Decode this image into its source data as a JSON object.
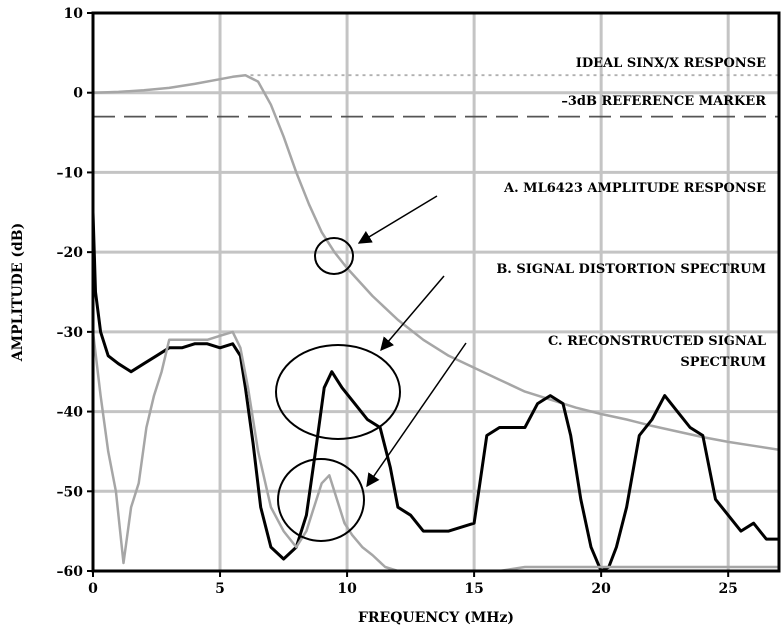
{
  "chart_data": {
    "type": "line",
    "xlabel": "FREQUENCY (MHz)",
    "ylabel": "AMPLITUDE (dB)",
    "xlim": [
      0,
      27
    ],
    "ylim": [
      -60,
      10
    ],
    "x_ticks": [
      0,
      5,
      10,
      15,
      20,
      25
    ],
    "y_ticks": [
      10,
      0,
      -10,
      -20,
      -30,
      -40,
      -50,
      -60
    ],
    "x_tick_labels": [
      "0",
      "5",
      "10",
      "15",
      "20",
      "25"
    ],
    "y_tick_labels": [
      "10",
      "0",
      "–10",
      "–20",
      "–30",
      "–40",
      "–50",
      "–60"
    ],
    "grid": true,
    "series": [
      {
        "name": "IDEAL SINX/X RESPONSE",
        "style": "dotted",
        "color": "#b0b0b0",
        "x": [
          6.2,
          27
        ],
        "y": [
          2.2,
          2.2
        ]
      },
      {
        "name": "–3dB REFERENCE MARKER",
        "style": "dashed",
        "color": "#555555",
        "x": [
          0,
          27
        ],
        "y": [
          -3,
          -3
        ]
      },
      {
        "name": "A.  ML6423 AMPLITUDE RESPONSE",
        "style": "solid",
        "color": "#a6a6a6",
        "x": [
          0,
          1,
          2,
          3,
          4,
          5,
          5.5,
          6,
          6.5,
          7,
          7.5,
          8,
          8.5,
          9,
          9.5,
          10,
          11,
          12,
          13,
          14,
          15,
          16,
          17,
          18,
          19,
          20,
          21,
          22,
          23,
          24,
          25,
          26,
          27
        ],
        "y": [
          0,
          0.1,
          0.3,
          0.6,
          1.1,
          1.7,
          2.0,
          2.2,
          1.4,
          -1.5,
          -5.5,
          -10,
          -14,
          -17.5,
          -20,
          -22,
          -25.5,
          -28.5,
          -31,
          -33,
          -34.5,
          -36,
          -37.5,
          -38.5,
          -39.5,
          -40.3,
          -41,
          -41.8,
          -42.5,
          -43.2,
          -43.8,
          -44.3,
          -44.8
        ]
      },
      {
        "name": "B.  SIGNAL DISTORTION SPECTRUM",
        "style": "solid",
        "color": "#000000",
        "x": [
          0,
          0.1,
          0.3,
          0.6,
          1,
          1.5,
          2,
          2.5,
          3,
          3.5,
          4,
          4.5,
          5,
          5.5,
          5.8,
          6,
          6.3,
          6.6,
          7,
          7.5,
          8,
          8.4,
          8.8,
          9.1,
          9.4,
          9.8,
          10.3,
          10.8,
          11.3,
          11.7,
          12,
          12.5,
          13,
          13.5,
          14,
          15,
          15.5,
          16,
          17,
          17.5,
          18,
          18.5,
          18.8,
          19.2,
          19.6,
          20,
          20.3,
          20.6,
          21,
          21.5,
          22,
          22.5,
          23,
          23.5,
          24,
          24.5,
          25,
          25.5,
          26,
          26.5,
          27
        ],
        "y": [
          -15,
          -25,
          -30,
          -33,
          -34,
          -35,
          -34,
          -33,
          -32,
          -32,
          -31.5,
          -31.5,
          -32,
          -31.5,
          -33,
          -37,
          -44,
          -52,
          -57,
          -58.5,
          -57,
          -53,
          -44,
          -37,
          -35,
          -37,
          -39,
          -41,
          -42,
          -47,
          -52,
          -53,
          -55,
          -55,
          -55,
          -54,
          -43,
          -42,
          -42,
          -39,
          -38,
          -39,
          -43,
          -51,
          -57,
          -60,
          -59.5,
          -57,
          -52,
          -43,
          -41,
          -38,
          -40,
          -42,
          -43,
          -51,
          -53,
          -55,
          -54,
          -56,
          -56
        ]
      },
      {
        "name": "C.  RECONSTRUCTED SIGNAL SPECTRUM",
        "style": "solid",
        "color": "#a6a6a6",
        "x": [
          0,
          0.3,
          0.6,
          0.9,
          1.2,
          1.5,
          1.8,
          2.1,
          2.4,
          2.7,
          3,
          3.5,
          4,
          4.5,
          5,
          5.5,
          5.8,
          6.1,
          6.5,
          7,
          7.5,
          8,
          8.4,
          8.7,
          9,
          9.3,
          9.6,
          9.9,
          10.2,
          10.6,
          11,
          11.5,
          12,
          12.5,
          13,
          14,
          15,
          16,
          17,
          18,
          19,
          20,
          21,
          22,
          23,
          24,
          25,
          26,
          27
        ],
        "y": [
          -30,
          -38,
          -45,
          -50,
          -59,
          -52,
          -49,
          -42,
          -38,
          -35,
          -31,
          -31,
          -31,
          -31,
          -30.5,
          -30,
          -32,
          -37,
          -45,
          -52,
          -55,
          -57,
          -55,
          -52,
          -49,
          -48,
          -51,
          -54,
          -55.5,
          -57,
          -58,
          -59.5,
          -60,
          -60,
          -60,
          -60,
          -60,
          -60,
          -59.5,
          -59.5,
          -59.5,
          -59.5,
          -59.5,
          -59.5,
          -59.5,
          -59.5,
          -59.5,
          -59.5,
          -59.5
        ]
      }
    ],
    "annotations": {
      "ideal_label": "IDEAL SINX/X RESPONSE",
      "ref_label": "–3dB REFERENCE MARKER",
      "a_label": "A.  ML6423 AMPLITUDE RESPONSE",
      "b_label": "B.  SIGNAL DISTORTION SPECTRUM",
      "c_label_line1": "C.  RECONSTRUCTED SIGNAL",
      "c_label_line2": "SPECTRUM"
    }
  }
}
